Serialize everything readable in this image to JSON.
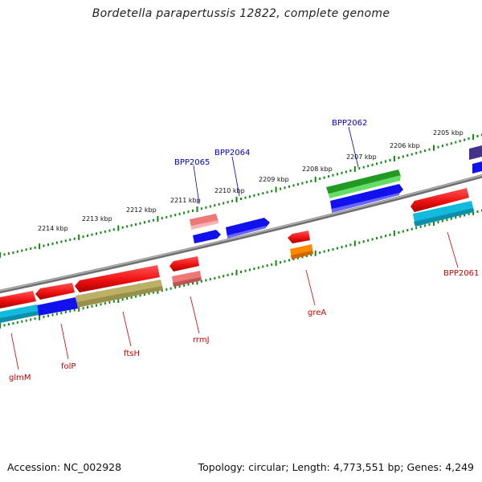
{
  "title": "Bordetella parapertussis 12822, complete genome",
  "footer": {
    "accession": "Accession: NC_002928",
    "topology": "Topology: circular; Length: 4,773,551 bp; Genes: 4,249"
  },
  "kbp_labels": [
    {
      "text": "2205 kbp",
      "kbp": 2205
    },
    {
      "text": "2206 kbp",
      "kbp": 2206
    },
    {
      "text": "2207 kbp",
      "kbp": 2207
    },
    {
      "text": "2208 kbp",
      "kbp": 2208
    },
    {
      "text": "2209 kbp",
      "kbp": 2209
    },
    {
      "text": "2210 kbp",
      "kbp": 2210
    },
    {
      "text": "2211 kbp",
      "kbp": 2211
    },
    {
      "text": "2212 kbp",
      "kbp": 2212
    },
    {
      "text": "2213 kbp",
      "kbp": 2213
    },
    {
      "text": "2214 kbp",
      "kbp": 2214
    }
  ],
  "gene_labels": [
    {
      "name": "BPP2065",
      "color": "#0000cc"
    },
    {
      "name": "BPP2064",
      "color": "#0000cc"
    },
    {
      "name": "BPP2062",
      "color": "#0000cc"
    },
    {
      "name": "BPP2061",
      "color": "#cc0000"
    },
    {
      "name": "greA",
      "color": "#cc0000"
    },
    {
      "name": "rrmJ",
      "color": "#cc0000"
    },
    {
      "name": "ftsH",
      "color": "#cc0000"
    },
    {
      "name": "folP",
      "color": "#cc0000"
    },
    {
      "name": "glmM",
      "color": "#cc0000"
    }
  ],
  "colors": {
    "backbone": "#888888",
    "ticks": "#118811",
    "cds_red": "#ee1111",
    "cds_blue": "#1111ee",
    "cds_green": "#22aa22",
    "cds_cyan": "#11bbdd",
    "cds_pink": "#ee7777",
    "cds_orange": "#ff8800",
    "cds_olive": "#bbb066",
    "cds_navy": "#443388"
  }
}
